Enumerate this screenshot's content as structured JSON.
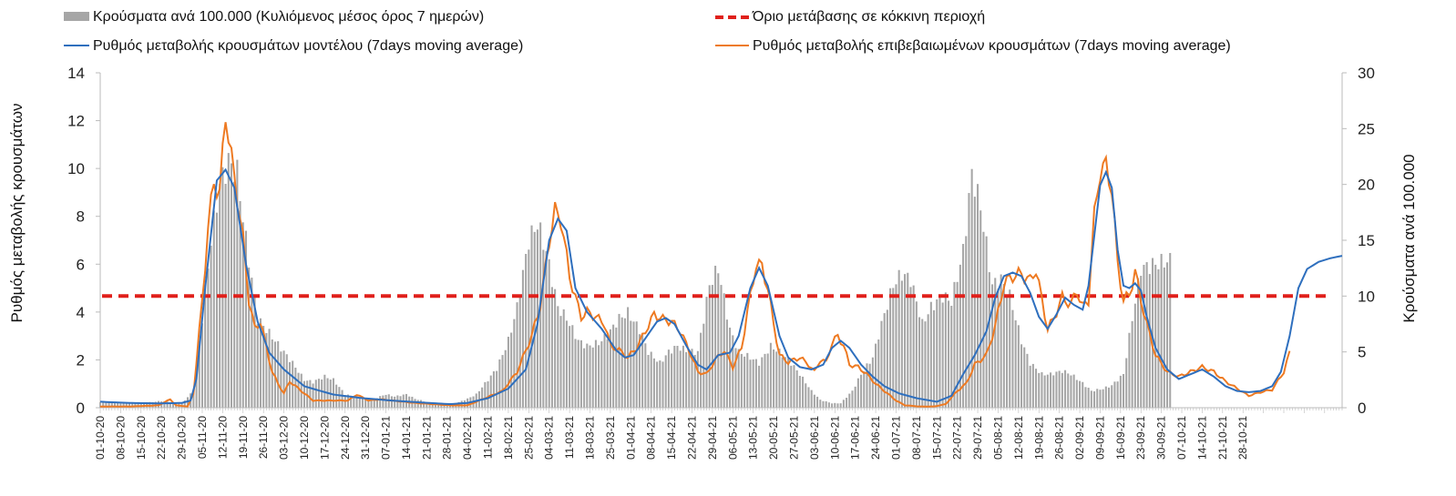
{
  "chart_data": {
    "type": "bar+line",
    "colors": {
      "bars": "#a6a6a6",
      "model_line": "#2e6fbe",
      "confirmed_line": "#ee7a22",
      "threshold": "#e0201b"
    },
    "legend": {
      "bars": "Κρούσματα ανά 100.000 (Κυλιόμενος μέσος όρος 7 ημερών)",
      "threshold": "Όριο μετάβασης σε κόκκινη περιοχή",
      "model": "Ρυθμός μεταβολής κρουσμάτων μοντέλου (7days moving average)",
      "confirmed": "Ρυθμός μεταβολής επιβεβαιωμένων κρουσμάτων (7days moving average)"
    },
    "y_left": {
      "label": "Ρυθμός μεταβολής κρουσμάτων",
      "ticks": [
        "0",
        "2",
        "4",
        "6",
        "8",
        "10",
        "12",
        "14"
      ],
      "range": [
        0,
        14
      ]
    },
    "y_right": {
      "label": "Κρούσματα ανά 100.000",
      "ticks": [
        "0",
        "5",
        "10",
        "15",
        "20",
        "25",
        "30"
      ],
      "range": [
        0,
        30
      ]
    },
    "x_ticks": [
      "01-10-20",
      "08-10-20",
      "15-10-20",
      "22-10-20",
      "29-10-20",
      "05-11-20",
      "12-11-20",
      "19-11-20",
      "26-11-20",
      "03-12-20",
      "10-12-20",
      "17-12-20",
      "24-12-20",
      "31-12-20",
      "07-01-21",
      "14-01-21",
      "21-01-21",
      "28-01-21",
      "04-02-21",
      "11-02-21",
      "18-02-21",
      "25-02-21",
      "04-03-21",
      "11-03-21",
      "18-03-21",
      "25-03-21",
      "01-04-21",
      "08-04-21",
      "15-04-21",
      "22-04-21",
      "29-04-21",
      "06-05-21",
      "13-05-21",
      "20-05-21",
      "27-05-21",
      "03-06-21",
      "10-06-21",
      "17-06-21",
      "24-06-21",
      "01-07-21",
      "08-07-21",
      "15-07-21",
      "22-07-21",
      "29-07-21",
      "05-08-21",
      "12-08-21",
      "19-08-21",
      "26-08-21",
      "02-09-21",
      "09-09-21",
      "16-09-21",
      "23-09-21",
      "30-09-21",
      "07-10-21",
      "14-10-21",
      "21-10-21",
      "28-10-21"
    ],
    "threshold_value_left": 4.67,
    "bar_anchors_right_axis": [
      [
        0,
        0.5
      ],
      [
        7,
        0.4
      ],
      [
        14,
        0.4
      ],
      [
        21,
        0.6
      ],
      [
        28,
        0.4
      ],
      [
        32,
        1.5
      ],
      [
        35,
        8
      ],
      [
        38,
        15
      ],
      [
        41,
        20
      ],
      [
        44,
        22
      ],
      [
        47,
        21
      ],
      [
        50,
        15
      ],
      [
        54,
        8
      ],
      [
        57,
        7
      ],
      [
        60,
        6
      ],
      [
        63,
        5
      ],
      [
        66,
        4
      ],
      [
        70,
        2.5
      ],
      [
        73,
        2.3
      ],
      [
        77,
        2.8
      ],
      [
        80,
        2.5
      ],
      [
        84,
        1.2
      ],
      [
        87,
        1
      ],
      [
        91,
        0.8
      ],
      [
        94,
        0.8
      ],
      [
        98,
        1.2
      ],
      [
        101,
        1
      ],
      [
        105,
        1.2
      ],
      [
        108,
        0.8
      ],
      [
        112,
        0.5
      ],
      [
        115,
        0.3
      ],
      [
        119,
        0.2
      ],
      [
        122,
        0.4
      ],
      [
        126,
        0.8
      ],
      [
        129,
        1.2
      ],
      [
        133,
        2.5
      ],
      [
        136,
        3.5
      ],
      [
        140,
        6
      ],
      [
        143,
        9
      ],
      [
        147,
        15
      ],
      [
        150,
        16.5
      ],
      [
        153,
        14
      ],
      [
        157,
        9
      ],
      [
        160,
        8
      ],
      [
        164,
        6
      ],
      [
        167,
        5.5
      ],
      [
        171,
        5.8
      ],
      [
        174,
        6.5
      ],
      [
        178,
        8
      ],
      [
        181,
        8.5
      ],
      [
        185,
        7
      ],
      [
        188,
        5
      ],
      [
        192,
        4
      ],
      [
        195,
        5
      ],
      [
        198,
        5.5
      ],
      [
        202,
        5
      ],
      [
        205,
        5
      ],
      [
        209,
        11
      ],
      [
        212,
        12.5
      ],
      [
        216,
        7
      ],
      [
        219,
        5
      ],
      [
        223,
        4.5
      ],
      [
        226,
        4
      ],
      [
        230,
        5.5
      ],
      [
        233,
        5
      ],
      [
        237,
        4
      ],
      [
        240,
        3
      ],
      [
        244,
        1.5
      ],
      [
        247,
        0.7
      ],
      [
        251,
        0.4
      ],
      [
        254,
        0.4
      ],
      [
        258,
        1.5
      ],
      [
        261,
        3
      ],
      [
        265,
        4.5
      ],
      [
        268,
        7.5
      ],
      [
        272,
        11
      ],
      [
        275,
        12
      ],
      [
        278,
        11.5
      ],
      [
        282,
        7.5
      ],
      [
        285,
        9
      ],
      [
        289,
        10
      ],
      [
        292,
        9.5
      ],
      [
        296,
        14
      ],
      [
        299,
        21
      ],
      [
        302,
        18
      ],
      [
        306,
        11
      ],
      [
        309,
        11.5
      ],
      [
        312,
        10
      ],
      [
        316,
        6
      ],
      [
        319,
        4
      ],
      [
        323,
        3
      ],
      [
        326,
        3
      ],
      [
        330,
        3.3
      ],
      [
        333,
        3
      ],
      [
        337,
        2.2
      ],
      [
        340,
        1.5
      ],
      [
        344,
        1.7
      ],
      [
        347,
        2
      ],
      [
        351,
        3
      ],
      [
        354,
        8
      ],
      [
        357,
        12.5
      ],
      [
        361,
        12.8
      ],
      [
        364,
        13
      ],
      [
        367,
        13.2
      ]
    ],
    "model_anchors_left_axis": [
      [
        0,
        0.25
      ],
      [
        10,
        0.2
      ],
      [
        20,
        0.18
      ],
      [
        28,
        0.2
      ],
      [
        31,
        0.3
      ],
      [
        33,
        1.2
      ],
      [
        36,
        5
      ],
      [
        40,
        9.5
      ],
      [
        43,
        9.95
      ],
      [
        46,
        9.2
      ],
      [
        50,
        6
      ],
      [
        54,
        3.6
      ],
      [
        58,
        2.3
      ],
      [
        63,
        1.6
      ],
      [
        67,
        1.2
      ],
      [
        70,
        0.9
      ],
      [
        75,
        0.72
      ],
      [
        80,
        0.55
      ],
      [
        90,
        0.4
      ],
      [
        100,
        0.3
      ],
      [
        110,
        0.22
      ],
      [
        120,
        0.15
      ],
      [
        126,
        0.2
      ],
      [
        133,
        0.4
      ],
      [
        140,
        0.8
      ],
      [
        146,
        1.6
      ],
      [
        150,
        3.5
      ],
      [
        154,
        7
      ],
      [
        157,
        7.9
      ],
      [
        160,
        7.4
      ],
      [
        163,
        5
      ],
      [
        167,
        4
      ],
      [
        172,
        3.3
      ],
      [
        177,
        2.4
      ],
      [
        180,
        2.1
      ],
      [
        183,
        2.2
      ],
      [
        187,
        2.9
      ],
      [
        191,
        3.6
      ],
      [
        194,
        3.75
      ],
      [
        197,
        3.5
      ],
      [
        201,
        2.6
      ],
      [
        205,
        1.8
      ],
      [
        208,
        1.6
      ],
      [
        212,
        2.2
      ],
      [
        216,
        2.3
      ],
      [
        219,
        3
      ],
      [
        223,
        5
      ],
      [
        226,
        5.85
      ],
      [
        229,
        5.1
      ],
      [
        233,
        3
      ],
      [
        236,
        2.1
      ],
      [
        240,
        1.7
      ],
      [
        244,
        1.6
      ],
      [
        248,
        1.8
      ],
      [
        251,
        2.5
      ],
      [
        254,
        2.8
      ],
      [
        257,
        2.5
      ],
      [
        261,
        1.8
      ],
      [
        265,
        1.3
      ],
      [
        269,
        0.9
      ],
      [
        274,
        0.6
      ],
      [
        280,
        0.4
      ],
      [
        287,
        0.25
      ],
      [
        292,
        0.5
      ],
      [
        296,
        1.4
      ],
      [
        300,
        2.2
      ],
      [
        304,
        3.2
      ],
      [
        307,
        4.6
      ],
      [
        310,
        5.5
      ],
      [
        313,
        5.65
      ],
      [
        316,
        5.5
      ],
      [
        319,
        4.8
      ],
      [
        322,
        3.8
      ],
      [
        325,
        3.3
      ],
      [
        328,
        3.9
      ],
      [
        331,
        4.6
      ],
      [
        334,
        4.3
      ],
      [
        337,
        4.1
      ],
      [
        339,
        5.1
      ],
      [
        341,
        7.2
      ],
      [
        343,
        9.3
      ],
      [
        345,
        9.85
      ],
      [
        347,
        9.2
      ],
      [
        349,
        6.6
      ],
      [
        351,
        5.1
      ],
      [
        353,
        5
      ],
      [
        355,
        5.2
      ],
      [
        357,
        4.9
      ],
      [
        359,
        3.8
      ],
      [
        362,
        2.5
      ],
      [
        366,
        1.6
      ],
      [
        370,
        1.2
      ],
      [
        374,
        1.4
      ],
      [
        378,
        1.6
      ],
      [
        382,
        1.3
      ],
      [
        386,
        0.9
      ],
      [
        390,
        0.7
      ],
      [
        394,
        0.65
      ],
      [
        398,
        0.7
      ],
      [
        402,
        0.9
      ],
      [
        405,
        1.5
      ],
      [
        408,
        3
      ],
      [
        411,
        5
      ],
      [
        414,
        5.8
      ],
      [
        418,
        6.1
      ],
      [
        422,
        6.25
      ],
      [
        426,
        6.35
      ]
    ],
    "confirmed_anchors_left_axis": [
      [
        0,
        0.05
      ],
      [
        10,
        0.05
      ],
      [
        20,
        0.1
      ],
      [
        24,
        0.35
      ],
      [
        26,
        0.1
      ],
      [
        30,
        0.05
      ],
      [
        32,
        0.6
      ],
      [
        35,
        4.5
      ],
      [
        37,
        7.5
      ],
      [
        39,
        9.5
      ],
      [
        41,
        8.9
      ],
      [
        43,
        12.4
      ],
      [
        45,
        10.4
      ],
      [
        47,
        8.8
      ],
      [
        49,
        7
      ],
      [
        51,
        4.5
      ],
      [
        53,
        3.3
      ],
      [
        55,
        3.6
      ],
      [
        57,
        2.5
      ],
      [
        59,
        1.5
      ],
      [
        61,
        1
      ],
      [
        63,
        0.6
      ],
      [
        65,
        1.1
      ],
      [
        67,
        0.9
      ],
      [
        70,
        0.6
      ],
      [
        73,
        0.3
      ],
      [
        78,
        0.3
      ],
      [
        85,
        0.3
      ],
      [
        88,
        0.55
      ],
      [
        92,
        0.3
      ],
      [
        96,
        0.35
      ],
      [
        100,
        0.3
      ],
      [
        104,
        0.25
      ],
      [
        108,
        0.2
      ],
      [
        114,
        0.15
      ],
      [
        120,
        0.1
      ],
      [
        126,
        0.1
      ],
      [
        132,
        0.4
      ],
      [
        138,
        0.7
      ],
      [
        143,
        1.5
      ],
      [
        148,
        3
      ],
      [
        151,
        4.3
      ],
      [
        154,
        7
      ],
      [
        156,
        8.2
      ],
      [
        158,
        7.9
      ],
      [
        161,
        5.5
      ],
      [
        163,
        4.6
      ],
      [
        165,
        3.8
      ],
      [
        167,
        4
      ],
      [
        170,
        3.8
      ],
      [
        173,
        3.5
      ],
      [
        175,
        2.6
      ],
      [
        178,
        2.4
      ],
      [
        181,
        2.1
      ],
      [
        184,
        2.5
      ],
      [
        187,
        3.2
      ],
      [
        190,
        3.9
      ],
      [
        193,
        3.7
      ],
      [
        196,
        3.6
      ],
      [
        199,
        3.2
      ],
      [
        202,
        2.4
      ],
      [
        205,
        1.5
      ],
      [
        208,
        1.4
      ],
      [
        211,
        2
      ],
      [
        214,
        2.4
      ],
      [
        217,
        1.7
      ],
      [
        220,
        2.5
      ],
      [
        222,
        4
      ],
      [
        225,
        6
      ],
      [
        227,
        5.9
      ],
      [
        229,
        5
      ],
      [
        231,
        3.5
      ],
      [
        233,
        2.2
      ],
      [
        236,
        1.9
      ],
      [
        240,
        2.1
      ],
      [
        243,
        1.8
      ],
      [
        245,
        1.5
      ],
      [
        247,
        2
      ],
      [
        249,
        1.9
      ],
      [
        251,
        2.7
      ],
      [
        253,
        3
      ],
      [
        255,
        2.6
      ],
      [
        257,
        1.8
      ],
      [
        260,
        1.7
      ],
      [
        263,
        1.4
      ],
      [
        266,
        1
      ],
      [
        270,
        0.6
      ],
      [
        273,
        0.3
      ],
      [
        276,
        0.1
      ],
      [
        281,
        0.05
      ],
      [
        286,
        0.05
      ],
      [
        290,
        0.15
      ],
      [
        294,
        0.7
      ],
      [
        297,
        1
      ],
      [
        300,
        1.8
      ],
      [
        304,
        2.2
      ],
      [
        307,
        3.4
      ],
      [
        310,
        5.2
      ],
      [
        313,
        5.5
      ],
      [
        316,
        5.6
      ],
      [
        319,
        5.3
      ],
      [
        321,
        5.8
      ],
      [
        323,
        4.5
      ],
      [
        325,
        3.3
      ],
      [
        327,
        3.7
      ],
      [
        330,
        4.6
      ],
      [
        333,
        4.3
      ],
      [
        335,
        4.9
      ],
      [
        337,
        4.2
      ],
      [
        339,
        4.5
      ],
      [
        341,
        8
      ],
      [
        343,
        9.95
      ],
      [
        345,
        10.05
      ],
      [
        347,
        9.2
      ],
      [
        349,
        6
      ],
      [
        351,
        4.5
      ],
      [
        353,
        4.7
      ],
      [
        355,
        5.7
      ],
      [
        357,
        4.5
      ],
      [
        359,
        3.5
      ],
      [
        362,
        2.2
      ],
      [
        366,
        1.5
      ],
      [
        370,
        1.3
      ],
      [
        374,
        1.5
      ],
      [
        378,
        1.7
      ],
      [
        382,
        1.5
      ],
      [
        386,
        1.1
      ],
      [
        390,
        0.8
      ],
      [
        394,
        0.5
      ],
      [
        398,
        0.65
      ],
      [
        402,
        0.75
      ],
      [
        406,
        1.5
      ],
      [
        408,
        2.3
      ]
    ]
  }
}
